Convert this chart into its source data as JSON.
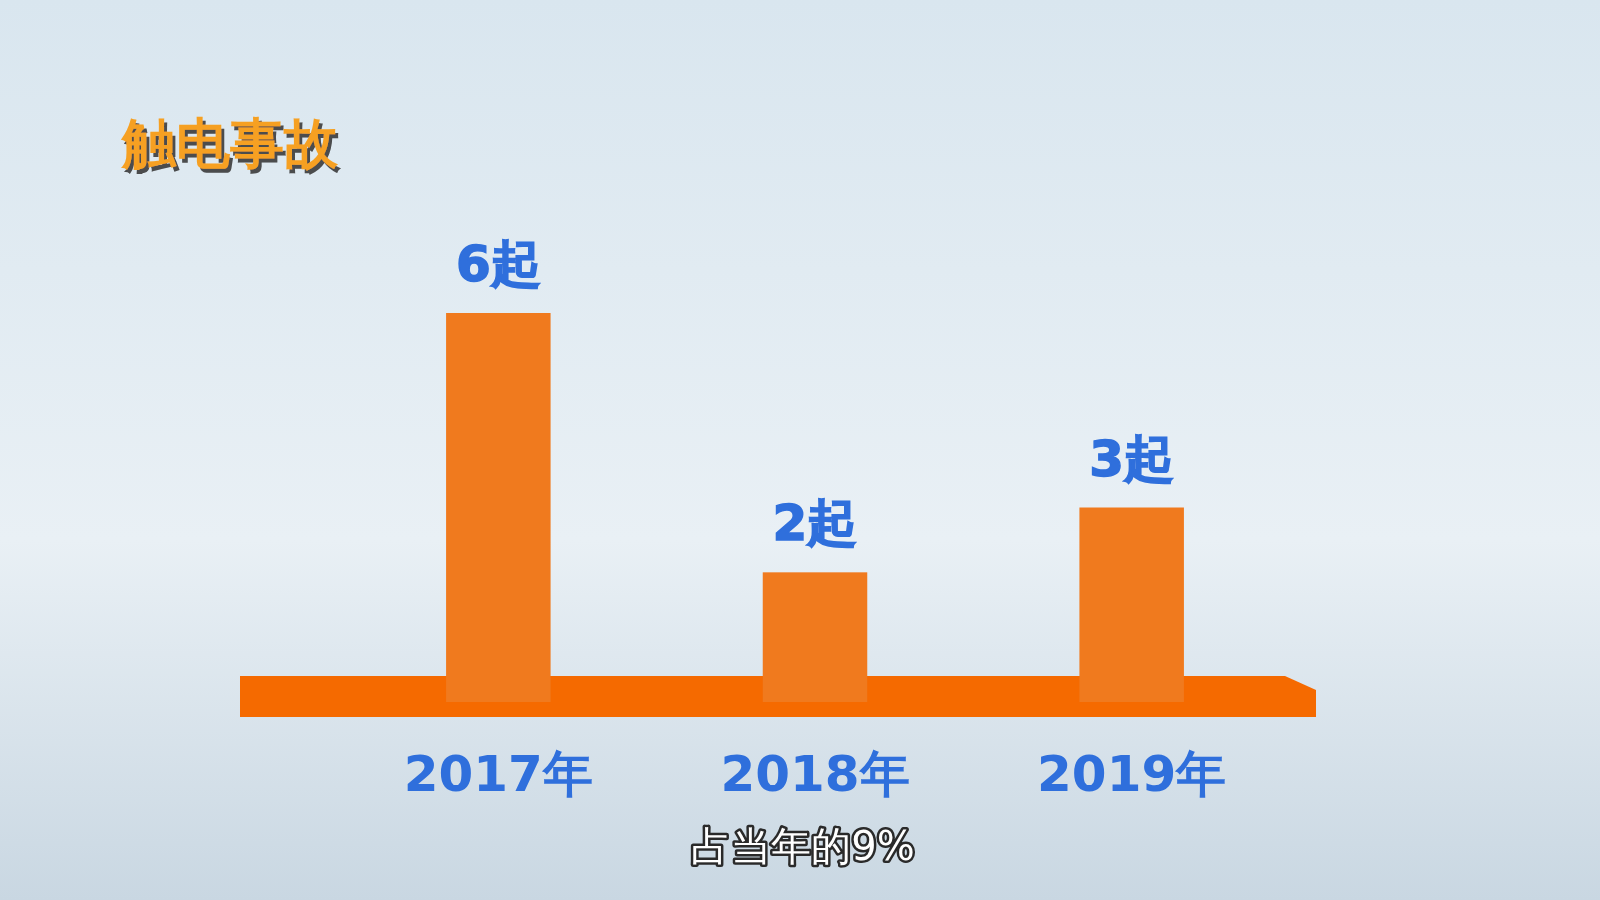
{
  "chart_data": {
    "type": "bar",
    "title": "触电事故",
    "categories": [
      "2017年",
      "2018年",
      "2019年"
    ],
    "values": [
      6,
      2,
      3
    ],
    "value_labels": [
      "6起",
      "2起",
      "3起"
    ],
    "color": "#f07a1e",
    "ylim": [
      0,
      6
    ],
    "tick_labels": "x",
    "annotations": [
      "占当年的9%"
    ]
  }
}
